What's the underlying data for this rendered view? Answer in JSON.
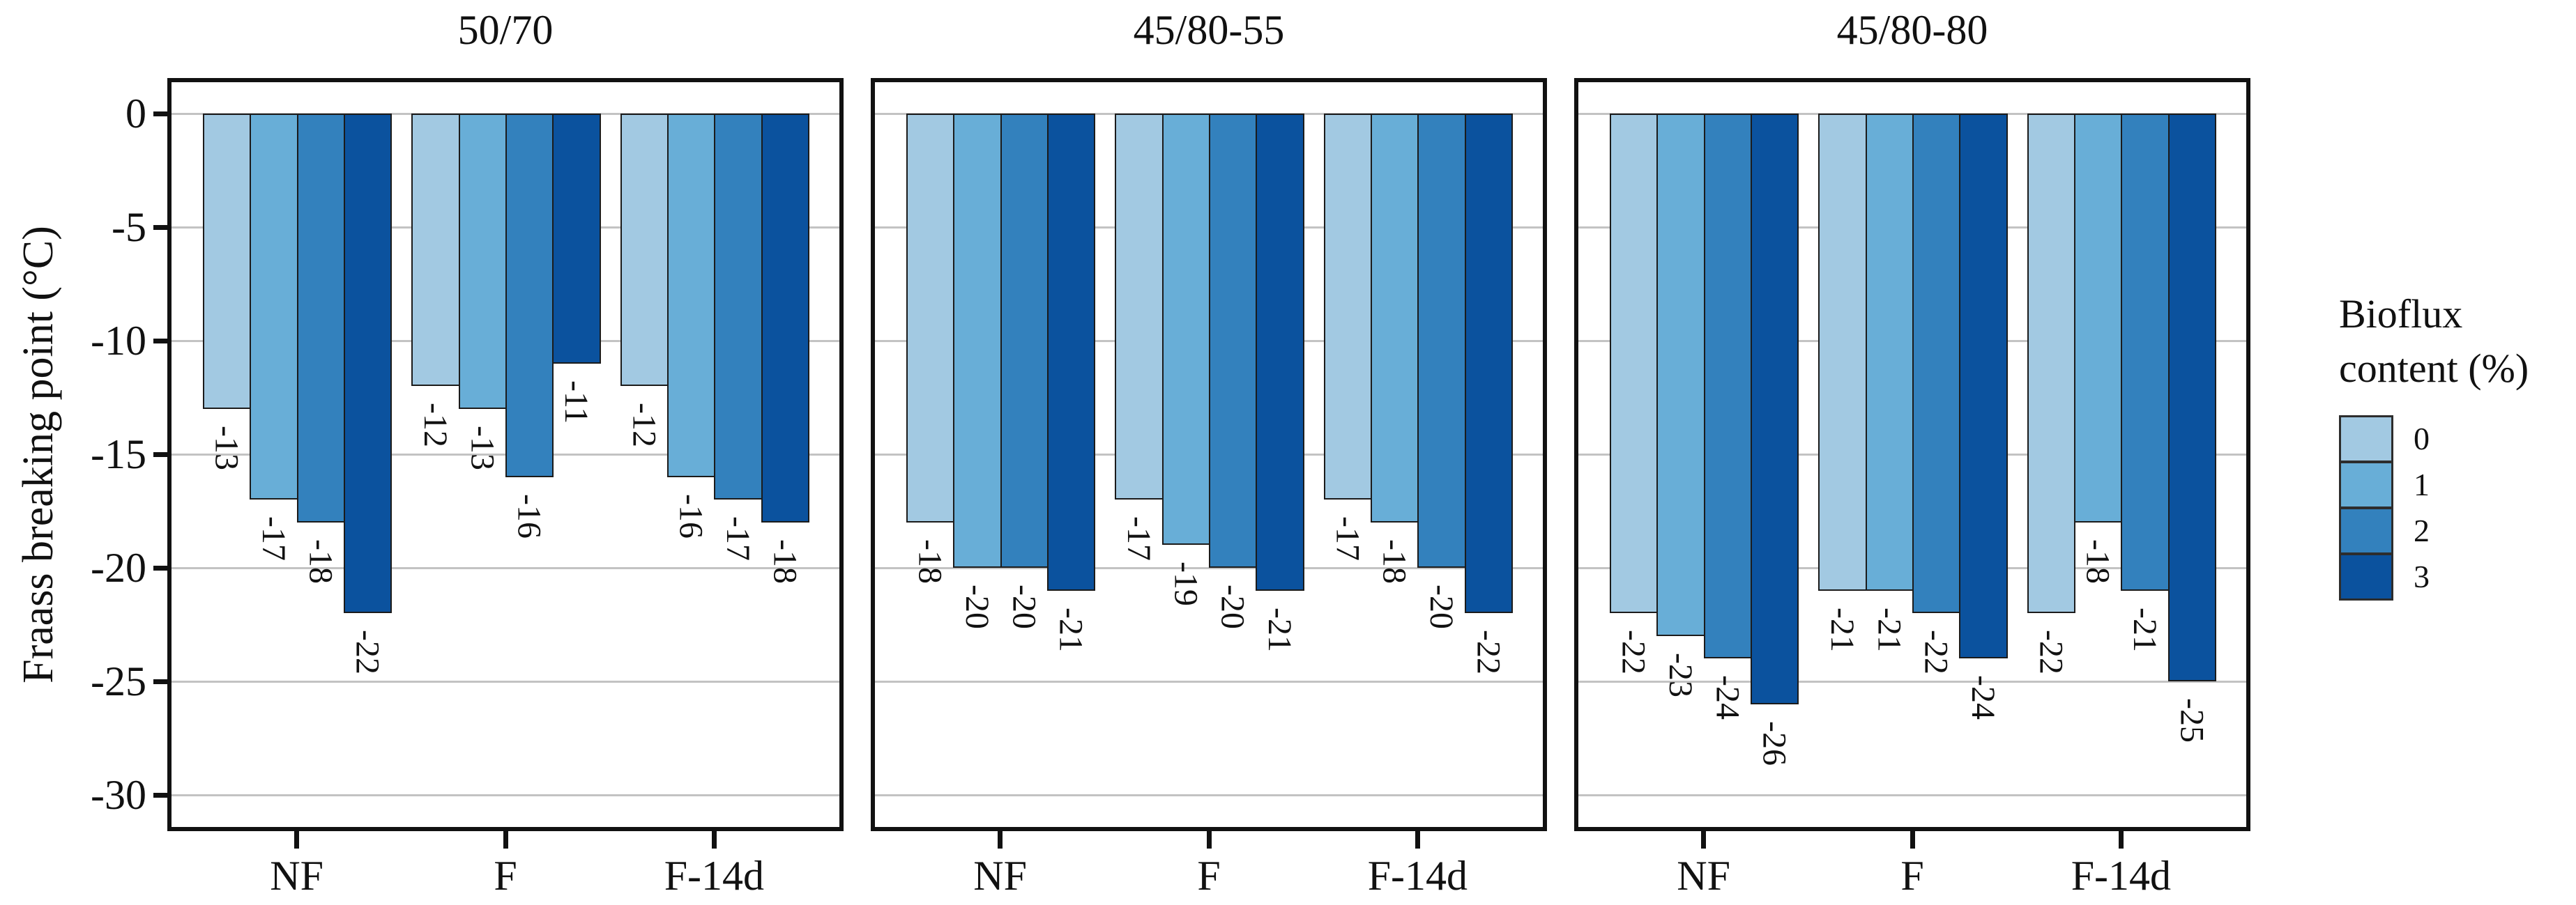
{
  "chart_data": {
    "type": "bar",
    "ylabel": "Fraass breaking point (°C)",
    "xlabel": "",
    "y_ticks": [
      0,
      -5,
      -10,
      -15,
      -20,
      -25,
      -30
    ],
    "ylim": [
      1.4,
      -31.4
    ],
    "grid": true,
    "legend_position": "right",
    "categories": [
      "NF",
      "F",
      "F-14d"
    ],
    "series_name": "Bioflux content (%)",
    "series_levels": [
      "0",
      "1",
      "2",
      "3"
    ],
    "series_colors": [
      "#a2c9e2",
      "#68aed7",
      "#3381bd",
      "#0b529e"
    ],
    "bar_value_labels": true,
    "panels": [
      {
        "title": "50/70",
        "groups": [
          {
            "label": "NF",
            "values": [
              -13,
              -17,
              -18,
              -22
            ]
          },
          {
            "label": "F",
            "values": [
              -12,
              -13,
              -16,
              -11
            ]
          },
          {
            "label": "F-14d",
            "values": [
              -12,
              -16,
              -17,
              -18
            ]
          }
        ]
      },
      {
        "title": "45/80-55",
        "groups": [
          {
            "label": "NF",
            "values": [
              -18,
              -20,
              -20,
              -21
            ]
          },
          {
            "label": "F",
            "values": [
              -17,
              -19,
              -20,
              -21
            ]
          },
          {
            "label": "F-14d",
            "values": [
              -17,
              -18,
              -20,
              -22
            ]
          }
        ]
      },
      {
        "title": "45/80-80",
        "groups": [
          {
            "label": "NF",
            "values": [
              -22,
              -23,
              -24,
              -26
            ]
          },
          {
            "label": "F",
            "values": [
              -21,
              -21,
              -22,
              -24
            ]
          },
          {
            "label": "F-14d",
            "values": [
              -22,
              -18,
              -21,
              -25
            ]
          }
        ]
      }
    ],
    "legend": {
      "title": "Bioflux content (%)",
      "title_lines": [
        "Bioflux",
        "content (%)"
      ],
      "entries": [
        "0",
        "1",
        "2",
        "3"
      ]
    }
  }
}
